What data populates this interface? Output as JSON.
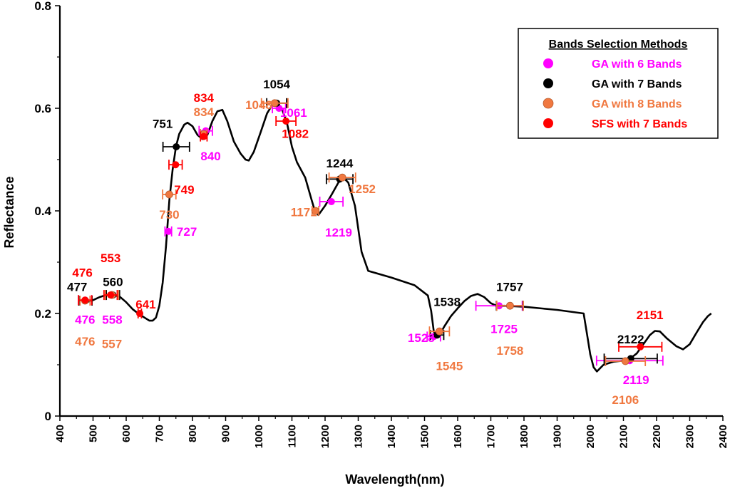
{
  "chart_data": {
    "type": "line",
    "title": "",
    "xlabel": "Wavelength(nm)",
    "ylabel": "Reflectance",
    "xlim": [
      400,
      2400
    ],
    "ylim": [
      0,
      0.8
    ],
    "x_ticks": [
      400,
      500,
      600,
      700,
      800,
      900,
      1000,
      1100,
      1200,
      1300,
      1400,
      1500,
      1600,
      1700,
      1800,
      1900,
      2000,
      2100,
      2200,
      2300,
      2400
    ],
    "x_tick_labels": [
      "400",
      "500",
      "600",
      "700",
      "800",
      "900",
      "1000",
      "1100",
      "1200",
      "1300",
      "1400",
      "1500",
      "1600",
      "1700",
      "1800",
      "1900",
      "2000",
      "2100",
      "2200",
      "2300",
      "2400"
    ],
    "y_ticks": [
      0,
      0.2,
      0.4,
      0.6,
      0.8
    ],
    "y_tick_labels": [
      "0",
      "0.2",
      "0.4",
      "0.6",
      "0.8"
    ],
    "spectrum": {
      "name": "Reflectance spectrum",
      "color": "#000000",
      "points": [
        [
          470,
          0.22
        ],
        [
          480,
          0.222
        ],
        [
          500,
          0.226
        ],
        [
          520,
          0.232
        ],
        [
          540,
          0.236
        ],
        [
          560,
          0.236
        ],
        [
          580,
          0.233
        ],
        [
          600,
          0.222
        ],
        [
          620,
          0.208
        ],
        [
          640,
          0.198
        ],
        [
          660,
          0.19
        ],
        [
          670,
          0.186
        ],
        [
          680,
          0.186
        ],
        [
          690,
          0.192
        ],
        [
          700,
          0.215
        ],
        [
          710,
          0.26
        ],
        [
          720,
          0.33
        ],
        [
          730,
          0.42
        ],
        [
          740,
          0.48
        ],
        [
          750,
          0.525
        ],
        [
          760,
          0.55
        ],
        [
          775,
          0.568
        ],
        [
          785,
          0.572
        ],
        [
          800,
          0.565
        ],
        [
          815,
          0.548
        ],
        [
          830,
          0.54
        ],
        [
          845,
          0.548
        ],
        [
          860,
          0.575
        ],
        [
          875,
          0.594
        ],
        [
          890,
          0.597
        ],
        [
          905,
          0.575
        ],
        [
          925,
          0.535
        ],
        [
          945,
          0.512
        ],
        [
          960,
          0.5
        ],
        [
          970,
          0.498
        ],
        [
          985,
          0.515
        ],
        [
          1005,
          0.552
        ],
        [
          1025,
          0.59
        ],
        [
          1040,
          0.606
        ],
        [
          1050,
          0.61
        ],
        [
          1060,
          0.608
        ],
        [
          1070,
          0.598
        ],
        [
          1085,
          0.572
        ],
        [
          1100,
          0.525
        ],
        [
          1115,
          0.495
        ],
        [
          1140,
          0.465
        ],
        [
          1160,
          0.42
        ],
        [
          1170,
          0.398
        ],
        [
          1180,
          0.392
        ],
        [
          1200,
          0.41
        ],
        [
          1220,
          0.432
        ],
        [
          1240,
          0.455
        ],
        [
          1255,
          0.465
        ],
        [
          1270,
          0.455
        ],
        [
          1290,
          0.41
        ],
        [
          1310,
          0.32
        ],
        [
          1330,
          0.283
        ],
        [
          1400,
          0.27
        ],
        [
          1470,
          0.255
        ],
        [
          1500,
          0.24
        ],
        [
          1510,
          0.235
        ],
        [
          1520,
          0.205
        ],
        [
          1528,
          0.165
        ],
        [
          1535,
          0.155
        ],
        [
          1545,
          0.158
        ],
        [
          1560,
          0.175
        ],
        [
          1580,
          0.195
        ],
        [
          1600,
          0.21
        ],
        [
          1620,
          0.224
        ],
        [
          1640,
          0.234
        ],
        [
          1660,
          0.238
        ],
        [
          1680,
          0.232
        ],
        [
          1700,
          0.22
        ],
        [
          1720,
          0.214
        ],
        [
          1740,
          0.215
        ],
        [
          1800,
          0.213
        ],
        [
          1900,
          0.207
        ],
        [
          1980,
          0.2
        ],
        [
          1990,
          0.16
        ],
        [
          2000,
          0.12
        ],
        [
          2010,
          0.095
        ],
        [
          2020,
          0.087
        ],
        [
          2040,
          0.1
        ],
        [
          2070,
          0.106
        ],
        [
          2100,
          0.108
        ],
        [
          2120,
          0.112
        ],
        [
          2140,
          0.122
        ],
        [
          2160,
          0.14
        ],
        [
          2180,
          0.158
        ],
        [
          2195,
          0.166
        ],
        [
          2210,
          0.165
        ],
        [
          2230,
          0.152
        ],
        [
          2260,
          0.136
        ],
        [
          2280,
          0.13
        ],
        [
          2300,
          0.14
        ],
        [
          2320,
          0.162
        ],
        [
          2340,
          0.183
        ],
        [
          2355,
          0.195
        ],
        [
          2365,
          0.2
        ]
      ]
    },
    "series": [
      {
        "name": "GA with 6 Bands",
        "color": "#ff00ff",
        "points": [
          {
            "x": 476,
            "y": 0.226,
            "xerr": 20
          },
          {
            "x": 558,
            "y": 0.236,
            "xerr": 20
          },
          {
            "x": 727,
            "y": 0.36,
            "xerr": 10
          },
          {
            "x": 840,
            "y": 0.556,
            "xerr": 20
          },
          {
            "x": 1061,
            "y": 0.6,
            "xerr": 20
          },
          {
            "x": 1219,
            "y": 0.418,
            "xerr": 35
          },
          {
            "x": 1528,
            "y": 0.155,
            "xerr": 20
          },
          {
            "x": 1725,
            "y": 0.215,
            "xerr": 70
          },
          {
            "x": 2119,
            "y": 0.108,
            "xerr": 100
          }
        ],
        "labels": [
          {
            "text": "476",
            "x": 476,
            "y": 0.188
          },
          {
            "text": "558",
            "x": 558,
            "y": 0.188
          },
          {
            "text": "727",
            "x": 783,
            "y": 0.36
          },
          {
            "text": "840",
            "x": 855,
            "y": 0.507
          },
          {
            "text": "1061",
            "x": 1105,
            "y": 0.592
          },
          {
            "text": "1219",
            "x": 1241,
            "y": 0.358
          },
          {
            "text": "1528",
            "x": 1490,
            "y": 0.153
          },
          {
            "text": "1725",
            "x": 1740,
            "y": 0.17
          },
          {
            "text": "2119",
            "x": 2138,
            "y": 0.071
          }
        ]
      },
      {
        "name": "GA with 7 Bands",
        "color": "#000000",
        "points": [
          {
            "x": 477,
            "y": 0.225,
            "xerr": 20
          },
          {
            "x": 560,
            "y": 0.236,
            "xerr": 20
          },
          {
            "x": 751,
            "y": 0.525,
            "xerr": 40
          },
          {
            "x": 1054,
            "y": 0.61,
            "xerr": 30
          },
          {
            "x": 1244,
            "y": 0.462,
            "xerr": 40
          },
          {
            "x": 1538,
            "y": 0.158,
            "xerr": 20
          },
          {
            "x": 1757,
            "y": 0.215,
            "xerr": 40
          },
          {
            "x": 2122,
            "y": 0.112,
            "xerr": 80
          }
        ],
        "labels": [
          {
            "text": "477",
            "x": 452,
            "y": 0.252
          },
          {
            "text": "560",
            "x": 560,
            "y": 0.262
          },
          {
            "text": "751",
            "x": 710,
            "y": 0.57
          },
          {
            "text": "1054",
            "x": 1054,
            "y": 0.647
          },
          {
            "text": "1244",
            "x": 1244,
            "y": 0.493
          },
          {
            "text": "1538",
            "x": 1568,
            "y": 0.223
          },
          {
            "text": "1757",
            "x": 1757,
            "y": 0.252
          },
          {
            "text": "2122",
            "x": 2122,
            "y": 0.15
          }
        ]
      },
      {
        "name": "GA with 8 Bands",
        "color": "#f07840",
        "points": [
          {
            "x": 476,
            "y": 0.225,
            "xerr": 15
          },
          {
            "x": 557,
            "y": 0.236,
            "xerr": 20
          },
          {
            "x": 730,
            "y": 0.432,
            "xerr": 20
          },
          {
            "x": 834,
            "y": 0.55,
            "xerr": 10
          },
          {
            "x": 1048,
            "y": 0.61,
            "xerr": 40
          },
          {
            "x": 1171,
            "y": 0.4,
            "xerr": 10
          },
          {
            "x": 1252,
            "y": 0.465,
            "xerr": 40
          },
          {
            "x": 1545,
            "y": 0.165,
            "xerr": 30
          },
          {
            "x": 1758,
            "y": 0.215,
            "xerr": 40
          },
          {
            "x": 2106,
            "y": 0.107,
            "xerr": 60
          }
        ],
        "labels": [
          {
            "text": "476",
            "x": 476,
            "y": 0.146
          },
          {
            "text": "557",
            "x": 557,
            "y": 0.141
          },
          {
            "text": "730",
            "x": 730,
            "y": 0.393
          },
          {
            "text": "834",
            "x": 834,
            "y": 0.593
          },
          {
            "text": "1048",
            "x": 1000,
            "y": 0.607
          },
          {
            "text": "1171",
            "x": 1136,
            "y": 0.398
          },
          {
            "text": "1252",
            "x": 1312,
            "y": 0.443
          },
          {
            "text": "1545",
            "x": 1575,
            "y": 0.098
          },
          {
            "text": "1758",
            "x": 1758,
            "y": 0.128
          },
          {
            "text": "2106",
            "x": 2106,
            "y": 0.032
          }
        ]
      },
      {
        "name": "SFS with 7 Bands",
        "color": "#ff0000",
        "points": [
          {
            "x": 476,
            "y": 0.226,
            "xerr": 20
          },
          {
            "x": 553,
            "y": 0.236,
            "xerr": 20
          },
          {
            "x": 641,
            "y": 0.2,
            "xerr": 5
          },
          {
            "x": 749,
            "y": 0.49,
            "xerr": 20
          },
          {
            "x": 834,
            "y": 0.545,
            "xerr": 10
          },
          {
            "x": 1082,
            "y": 0.575,
            "xerr": 30
          },
          {
            "x": 2151,
            "y": 0.135,
            "xerr": 65
          }
        ],
        "labels": [
          {
            "text": "476",
            "x": 468,
            "y": 0.28
          },
          {
            "text": "553",
            "x": 553,
            "y": 0.308
          },
          {
            "text": "641",
            "x": 659,
            "y": 0.218
          },
          {
            "text": "749",
            "x": 775,
            "y": 0.442
          },
          {
            "text": "834",
            "x": 834,
            "y": 0.621
          },
          {
            "text": "1082",
            "x": 1110,
            "y": 0.551
          },
          {
            "text": "2151",
            "x": 2180,
            "y": 0.197
          }
        ]
      }
    ],
    "legend": {
      "title": "Bands Selection Methods",
      "position": "top-right",
      "entries": [
        "GA with 6 Bands",
        "GA with 7 Bands",
        "GA with 8 Bands",
        "SFS with 7 Bands"
      ],
      "marker_colors": [
        "#ff00ff",
        "#000000",
        "#f07840",
        "#ff0000"
      ],
      "text_colors": [
        "#ff00ff",
        "#000000",
        "#f07840",
        "#ff0000"
      ]
    }
  }
}
